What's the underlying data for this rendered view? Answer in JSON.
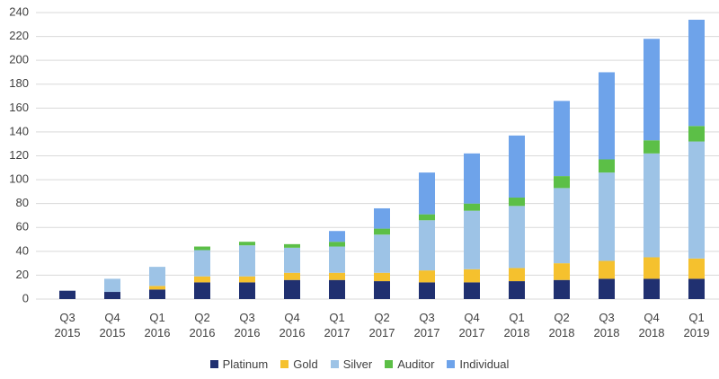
{
  "chart_data": {
    "type": "stacked-bar",
    "categories": [
      "Q3 2015",
      "Q4 2015",
      "Q1 2016",
      "Q2 2016",
      "Q3 2016",
      "Q4 2016",
      "Q1 2017",
      "Q2 2017",
      "Q3 2017",
      "Q4 2017",
      "Q1 2018",
      "Q2 2018",
      "Q3 2018",
      "Q4 2018",
      "Q1 2019"
    ],
    "series": [
      {
        "name": "Platinum",
        "color": "#203070",
        "values": [
          7,
          6,
          8,
          14,
          14,
          16,
          16,
          15,
          14,
          14,
          15,
          16,
          17,
          17,
          17
        ]
      },
      {
        "name": "Gold",
        "color": "#f5c12e",
        "values": [
          0,
          0,
          3,
          5,
          5,
          6,
          6,
          7,
          10,
          11,
          11,
          14,
          15,
          18,
          17
        ]
      },
      {
        "name": "Silver",
        "color": "#9dc3e6",
        "values": [
          0,
          11,
          16,
          22,
          26,
          21,
          22,
          32,
          42,
          49,
          52,
          63,
          74,
          87,
          98
        ]
      },
      {
        "name": "Auditor",
        "color": "#5cbf47",
        "values": [
          0,
          0,
          0,
          3,
          3,
          3,
          4,
          5,
          5,
          6,
          7,
          10,
          11,
          11,
          13
        ]
      },
      {
        "name": "Individual",
        "color": "#6ea3ea",
        "values": [
          0,
          0,
          0,
          0,
          0,
          0,
          9,
          17,
          35,
          42,
          52,
          63,
          73,
          85,
          89
        ]
      }
    ],
    "ylim": [
      0,
      240
    ],
    "yticks": [
      0,
      20,
      40,
      60,
      80,
      100,
      120,
      140,
      160,
      180,
      200,
      220,
      240
    ],
    "grid": true
  }
}
